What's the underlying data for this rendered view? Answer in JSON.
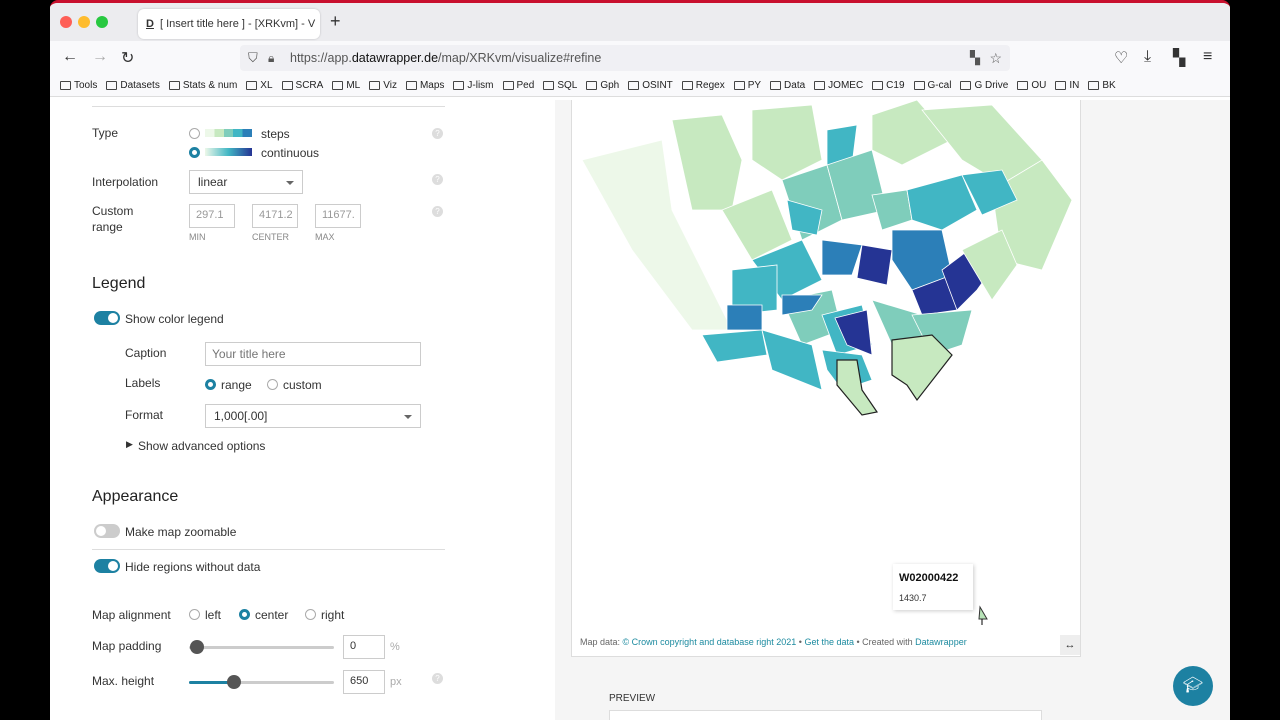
{
  "browser": {
    "tab_title": "[ Insert title here ] - [XRKvm] - V",
    "url_prefix": "https://app.",
    "url_domain": "datawrapper.de",
    "url_path": "/map/XRKvm/visualize#refine",
    "bookmarks": [
      "Tools",
      "Datasets",
      "Stats & num",
      "XL",
      "SCRA",
      "ML",
      "Viz",
      "Maps",
      "J-lism",
      "Ped",
      "SQL",
      "Gph",
      "OSINT",
      "Regex",
      "PY",
      "Data",
      "JOMEC",
      "C19",
      "G-cal",
      "G Drive",
      "OU",
      "IN",
      "BK"
    ]
  },
  "colors": {
    "accent": "#1d81a2",
    "scale": [
      "#edf8e9",
      "#c7e9c0",
      "#7fcdbb",
      "#41b6c4",
      "#2c7fb8",
      "#253494"
    ]
  },
  "panel": {
    "type_label": "Type",
    "type_options": [
      "steps",
      "continuous"
    ],
    "type_selected": "continuous",
    "interpolation_label": "Interpolation",
    "interpolation_value": "linear",
    "custom_range_label": "Custom range",
    "range_min": "297.1",
    "range_center": "4171.2",
    "range_max": "11677.",
    "min_label": "MIN",
    "center_label": "CENTER",
    "max_label": "MAX",
    "legend_heading": "Legend",
    "show_legend_label": "Show color legend",
    "show_legend": true,
    "caption_label": "Caption",
    "caption_placeholder": "Your title here",
    "labels_label": "Labels",
    "labels_options": [
      "range",
      "custom"
    ],
    "labels_selected": "range",
    "format_label": "Format",
    "format_value": "1,000[.00]",
    "advanced_label": "Show advanced options",
    "appearance_heading": "Appearance",
    "zoomable_label": "Make map zoomable",
    "zoomable": false,
    "hide_regions_label": "Hide regions without data",
    "hide_regions": true,
    "alignment_label": "Map alignment",
    "alignment_options": [
      "left",
      "center",
      "right"
    ],
    "alignment_selected": "center",
    "padding_label": "Map padding",
    "padding_value": "0",
    "padding_unit": "%",
    "height_label": "Max. height",
    "height_value": "650",
    "height_unit": "px",
    "help": "?"
  },
  "map": {
    "tooltip_title": "W02000422",
    "tooltip_value": "1430.7",
    "footer_prefix": "Map data: ",
    "footer_source": "© Crown copyright and database right 2021",
    "footer_sep1": " • ",
    "footer_get": "Get the data",
    "footer_sep2": " • Created with ",
    "footer_dw": "Datawrapper",
    "resize_icon": "↔"
  },
  "preview_label": "PREVIEW"
}
